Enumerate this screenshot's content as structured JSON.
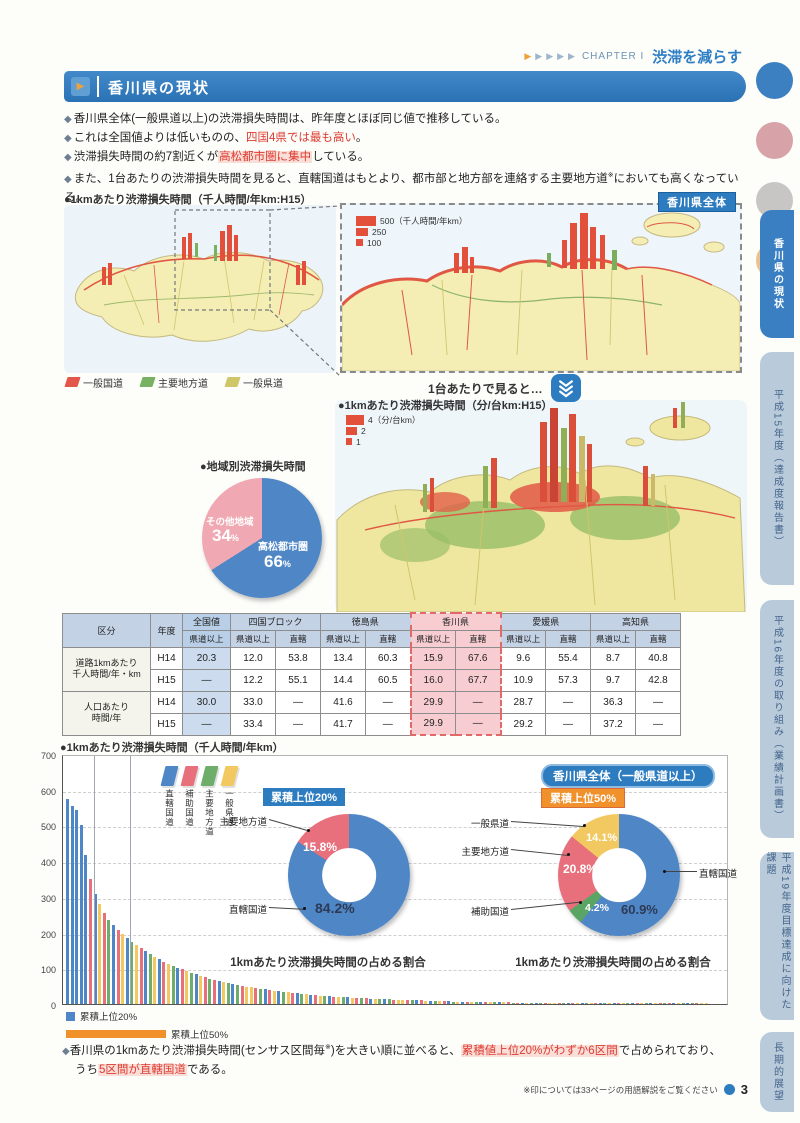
{
  "header": {
    "arrow": "▶",
    "chapter": "CHAPTER I",
    "chapter_title": "渋滞を減らす",
    "page_title": "香川県の現状",
    "accent": "▶"
  },
  "bullets": {
    "b1": "香川県全体(一般県道以上)の渋滞損失時間は、昨年度とほぼ同じ値で推移している。",
    "b2_pre": "これは全国値よりは低いものの、",
    "b2_red": "四国4県では最も高い",
    "b2_post": "。",
    "b3_pre": "渋滞損失時間の約7割近くが",
    "b3_red": "高松都市圏に集中",
    "b3_post": "している。",
    "b4_pre": "また、1台あたりの渋滞損失時間を見ると、直轄国道はもとより、都市部と地方部を連絡する主要地方道",
    "b4_sup": "※",
    "b4_post": "においても高くなっている。"
  },
  "map_section": {
    "map1_label": "●1kmあたり渋滞損失時間（千人時間/年km:H15）",
    "map1_badge": "香川県全体",
    "map1_scale": [
      "500（千人時間/年km）",
      "250",
      "100"
    ],
    "road_legend": [
      {
        "label": "一般国道",
        "color": "#e2574a"
      },
      {
        "label": "主要地方道",
        "color": "#78b161"
      },
      {
        "label": "一般県道",
        "color": "#cfc66a"
      }
    ],
    "transition_text": "1台あたりで見ると…",
    "map2_label": "●1kmあたり渋滞損失時間（分/台km:H15）",
    "map2_scale": [
      "4（分/台km）",
      "2",
      "1"
    ]
  },
  "region_pie": {
    "title": "●地域別渋滞損失時間",
    "slices": [
      {
        "label": "高松都市圏",
        "num": "66",
        "unit": "%",
        "value": 66,
        "color": "#4f86c6"
      },
      {
        "label": "その他地域",
        "num": "34",
        "unit": "%",
        "value": 34,
        "color": "#f0a9b2"
      }
    ]
  },
  "table": {
    "h_kubun": "区分",
    "h_nendo": "年度",
    "h_zenkoku": "全国値",
    "h_shikoku": "四国ブロック",
    "h_tokushima": "徳島県",
    "h_kagawa": "香川県",
    "h_ehime": "愛媛県",
    "h_kochi": "高知県",
    "sub_kendo": "県道以上",
    "sub_choku": "直轄",
    "rows": [
      {
        "label": "道路1kmあたり\n千人時間/年・km",
        "year": "H14",
        "v": [
          "20.3",
          "12.0",
          "53.8",
          "13.4",
          "60.3",
          "15.9",
          "67.6",
          "9.6",
          "55.4",
          "8.7",
          "40.8"
        ]
      },
      {
        "year": "H15",
        "v": [
          "—",
          "12.2",
          "55.1",
          "14.4",
          "60.5",
          "16.0",
          "67.7",
          "10.9",
          "57.3",
          "9.7",
          "42.8"
        ]
      },
      {
        "label": "人口あたり\n時間/年",
        "year": "H14",
        "v": [
          "30.0",
          "33.0",
          "—",
          "41.6",
          "—",
          "29.9",
          "—",
          "28.7",
          "—",
          "36.3",
          "—"
        ]
      },
      {
        "year": "H15",
        "v": [
          "—",
          "33.4",
          "—",
          "41.7",
          "—",
          "29.9",
          "—",
          "29.2",
          "—",
          "37.2",
          "—"
        ]
      }
    ]
  },
  "bar_section": {
    "title": "●1kmあたり渋滞損失時間（千人時間/年km）",
    "badge": "香川県全体（一般県道以上）",
    "cum_legend": [
      {
        "label": "累積上位20%",
        "color": "#4f86c6"
      },
      {
        "label": "累積上位50%",
        "color": "#f0912c"
      }
    ]
  },
  "chart_data": [
    {
      "type": "pie",
      "title": "地域別渋滞損失時間",
      "labels": [
        "高松都市圏",
        "その他地域"
      ],
      "values": [
        66,
        34
      ],
      "colors": [
        "#4f86c6",
        "#f0a9b2"
      ],
      "unit": "%"
    },
    {
      "type": "donut",
      "badge": "累積上位20%",
      "badge_color": "#2e7cc0",
      "caption": "1kmあたり渋滞損失時間の占める割合",
      "segments": [
        {
          "label": "直轄国道",
          "display": "84.2%",
          "value": 84.2,
          "color": "#4f86c6"
        },
        {
          "label": "主要地方道",
          "display": "15.8%",
          "value": 15.8,
          "color": "#e8707c"
        }
      ]
    },
    {
      "type": "donut",
      "badge": "累積上位50%",
      "badge_color": "#f0912c",
      "caption": "1kmあたり渋滞損失時間の占める割合",
      "segments": [
        {
          "label": "直轄国道",
          "display": "60.9%",
          "value": 60.9,
          "color": "#4f86c6"
        },
        {
          "label": "補助国道",
          "display": "4.2%",
          "value": 4.2,
          "color": "#5aa564"
        },
        {
          "label": "主要地方道",
          "display": "20.8%",
          "value": 20.8,
          "color": "#e8707c"
        },
        {
          "label": "一般県道",
          "display": "14.1%",
          "value": 14.1,
          "color": "#f2c961"
        }
      ]
    },
    {
      "type": "bar",
      "title": "1kmあたり渋滞損失時間（千人時間/年km）",
      "ylabel": "千人時間/年km",
      "ylim": [
        0,
        700
      ],
      "yticks": [
        "700",
        "600",
        "500",
        "400",
        "300",
        "200",
        "100",
        "0"
      ],
      "grid": true,
      "legend": [
        {
          "key": "b",
          "label": "直轄国道",
          "color": "#4f86c6"
        },
        {
          "key": "r",
          "label": "補助国道",
          "color": "#e8707c"
        },
        {
          "key": "g",
          "label": "主要地方道",
          "color": "#6fae6a"
        },
        {
          "key": "y",
          "label": "一般県道",
          "color": "#f2c961"
        }
      ],
      "palette": {
        "b": "#4f86c6",
        "r": "#e8707c",
        "g": "#6fae6a",
        "y": "#f2c961"
      },
      "first_colors": "bbbbbrb",
      "color_pattern": "yrgbrybgyrbgybrygbrygbyrgrbygbgry",
      "marker_after": [
        6,
        14
      ],
      "values": [
        578,
        560,
        548,
        505,
        420,
        352,
        310,
        282,
        258,
        238,
        222,
        210,
        198,
        187,
        176,
        166,
        157,
        149,
        141,
        134,
        127,
        120,
        114,
        108,
        103,
        98,
        93,
        88,
        84,
        80,
        76,
        72,
        69,
        66,
        63,
        60,
        57,
        54,
        52,
        49,
        47,
        45,
        43,
        41,
        39,
        37,
        36,
        34,
        33,
        31,
        30,
        29,
        27,
        26,
        25,
        24,
        23,
        22,
        21,
        20,
        19,
        19,
        18,
        17,
        16,
        16,
        15,
        15,
        14,
        13,
        13,
        12,
        12,
        11,
        11,
        10,
        10,
        10,
        9,
        9,
        9,
        8,
        8,
        8,
        7,
        7,
        7,
        7,
        6,
        6,
        6,
        6,
        5,
        5,
        5,
        5,
        5,
        4,
        4,
        4,
        4,
        4,
        4,
        4,
        3,
        3,
        3,
        3,
        3,
        3,
        3,
        3,
        3,
        2,
        2,
        2,
        2,
        2,
        2,
        2,
        2,
        2,
        2,
        2,
        2,
        2,
        2,
        2,
        2,
        2,
        2,
        2,
        2,
        2,
        2,
        2,
        2,
        2,
        2,
        2
      ]
    }
  ],
  "bottom_note": {
    "pre1": "香川県の1kmあたり渋滞損失時間(センサス区間毎",
    "sup": "※",
    "pre2": ")を大きい順に並べると、",
    "red1": "累積値上位20%がわずか6区間",
    "mid": "で占められており、",
    "line2_pre": "うち",
    "red2": "5区間が直轄国道",
    "post": "である。"
  },
  "footer": {
    "note": "※印については33ページの用語解説をご覧ください",
    "page_num": "3"
  },
  "sidebar": {
    "dots": [
      "#3c80c1",
      "#d8a3a8",
      "#c8c6c4",
      "#ecc191"
    ],
    "tabs": [
      {
        "label": "香川県の現状",
        "active": true
      },
      {
        "label": "平成15年度（達成度報告書）",
        "active": false
      },
      {
        "label": "平成16年度の取り組み（業績計画書）",
        "active": false
      },
      {
        "label": "平成19年度目標達成に向けた課題",
        "active": false
      },
      {
        "label": "長期的展望",
        "active": false
      }
    ]
  }
}
